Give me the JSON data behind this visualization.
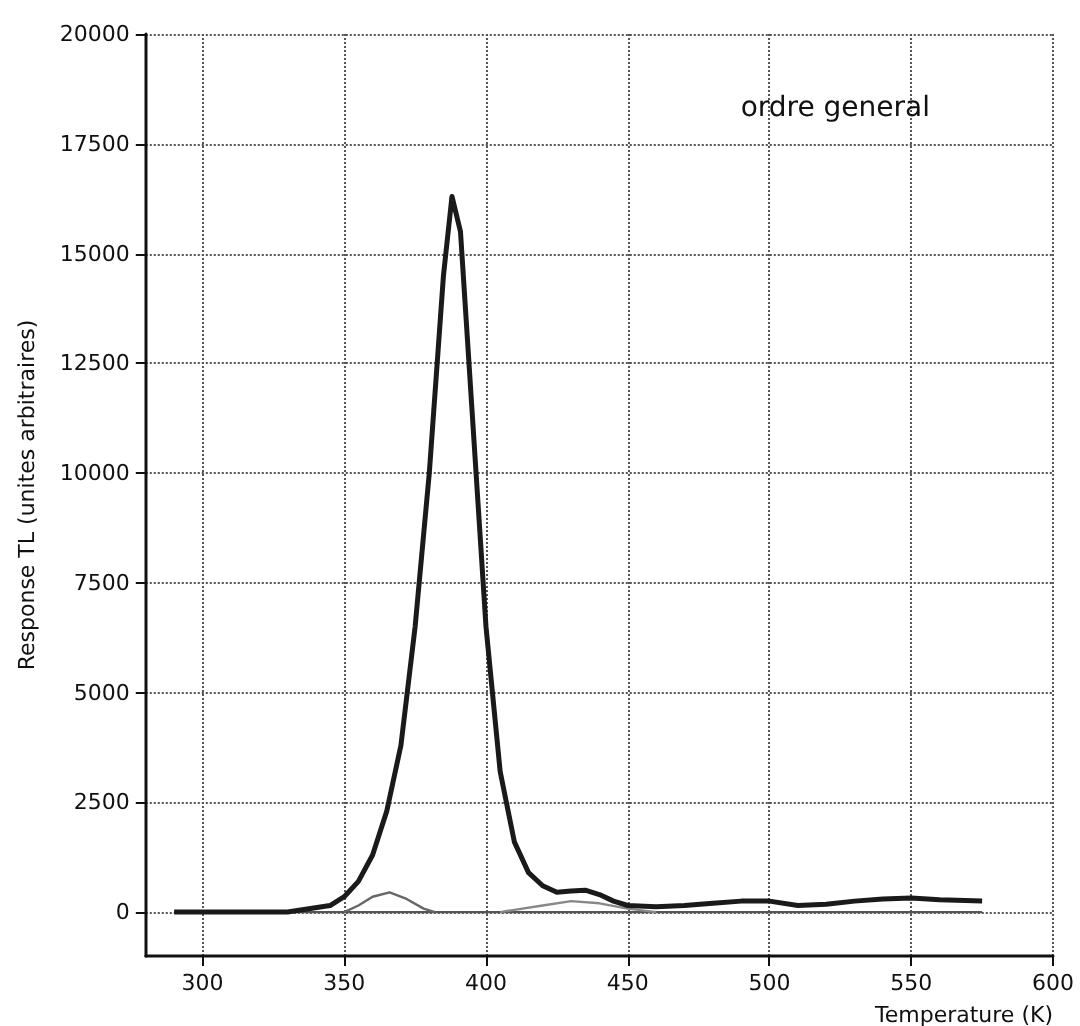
{
  "chart_data": {
    "type": "line",
    "title": "ordre general",
    "xlabel": "Temperature (K)",
    "ylabel": "Response TL (unites arbitraires)",
    "xlim": [
      280,
      600
    ],
    "xticks": [
      300,
      350,
      400,
      450,
      500,
      550,
      600
    ],
    "ylim": [
      -1000,
      20000
    ],
    "yticks": [
      0,
      2500,
      5000,
      7500,
      10000,
      12500,
      15000,
      17500,
      20000
    ],
    "grid": true,
    "marker": "none",
    "line_style": "solid",
    "series": [
      {
        "color": "#1a1a1a",
        "x": [
          290,
          330,
          345,
          350,
          355,
          360,
          365,
          370,
          375,
          380,
          385,
          388,
          391,
          395,
          400,
          405,
          410,
          415,
          420,
          425,
          430,
          435,
          440,
          445,
          450,
          460,
          470,
          480,
          490,
          500,
          510,
          520,
          530,
          540,
          550,
          560,
          575
        ],
        "values": [
          0,
          0,
          150,
          350,
          700,
          1300,
          2300,
          3800,
          6500,
          10000,
          14500,
          16300,
          15500,
          11500,
          6500,
          3200,
          1600,
          900,
          600,
          450,
          480,
          500,
          400,
          250,
          150,
          120,
          150,
          200,
          250,
          250,
          150,
          180,
          250,
          300,
          320,
          280,
          250
        ]
      },
      {
        "color": "#666666",
        "x": [
          350,
          355,
          360,
          366,
          372,
          378,
          382
        ],
        "values": [
          0,
          150,
          350,
          450,
          300,
          80,
          0
        ]
      },
      {
        "color": "#888888",
        "x": [
          405,
          420,
          430,
          440,
          450,
          460
        ],
        "values": [
          0,
          150,
          250,
          200,
          80,
          0
        ]
      },
      {
        "color": "#555555",
        "x": [
          290,
          575
        ],
        "values": [
          0,
          0
        ]
      }
    ]
  }
}
